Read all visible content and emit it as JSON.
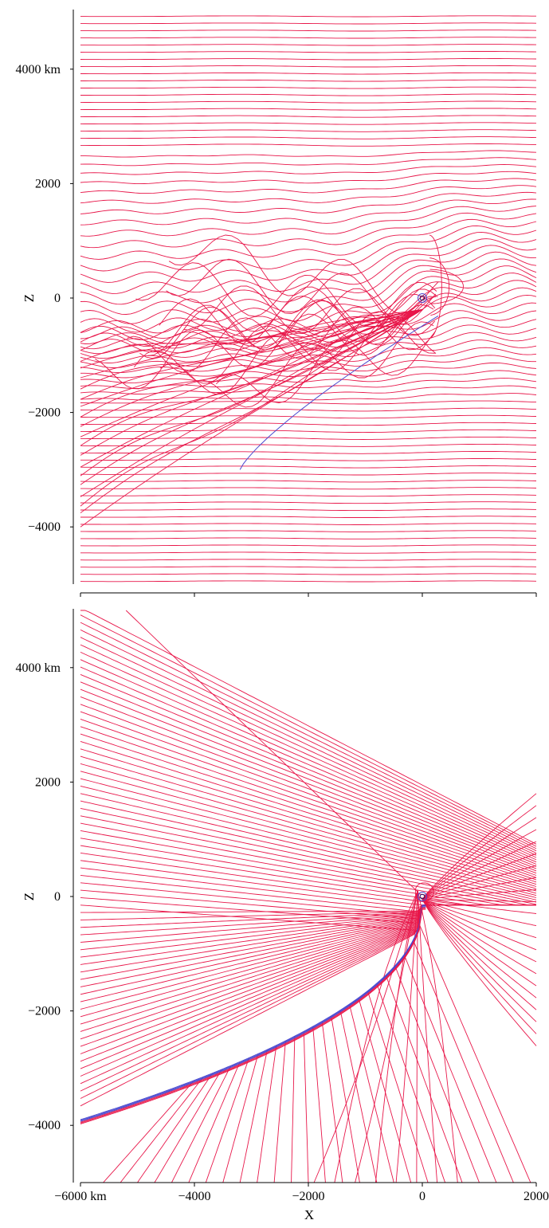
{
  "chart_data": [
    {
      "type": "line",
      "title": "",
      "xlabel": "",
      "ylabel": "Z",
      "xlim": [
        -6000,
        2000
      ],
      "ylim": [
        -5000,
        5000
      ],
      "y_ticks": [
        {
          "value": 4000,
          "label": "4000 km"
        },
        {
          "value": 2000,
          "label": "2000"
        },
        {
          "value": 0,
          "label": "0"
        },
        {
          "value": -2000,
          "label": "−2000"
        },
        {
          "value": -4000,
          "label": "−4000"
        }
      ],
      "x_ticks": [
        -6000,
        -4000,
        -2000,
        0,
        2000
      ],
      "colors": {
        "field": "#e8174a",
        "boundary": "#4a4ad0"
      },
      "grid": false,
      "legend": "none"
    },
    {
      "type": "line",
      "title": "",
      "xlabel": "X",
      "ylabel": "Z",
      "xlim": [
        -6000,
        2000
      ],
      "ylim": [
        -5000,
        5000
      ],
      "y_ticks": [
        {
          "value": 4000,
          "label": "4000 km"
        },
        {
          "value": 2000,
          "label": "2000"
        },
        {
          "value": 0,
          "label": "0"
        },
        {
          "value": -2000,
          "label": "−2000"
        },
        {
          "value": -4000,
          "label": "−4000"
        }
      ],
      "x_ticks": [
        {
          "value": -6000,
          "label": "−6000 km"
        },
        {
          "value": -4000,
          "label": "−4000"
        },
        {
          "value": -2000,
          "label": "−2000"
        },
        {
          "value": 0,
          "label": "0"
        },
        {
          "value": 2000,
          "label": "2000"
        }
      ],
      "colors": {
        "field": "#e8174a",
        "boundary": "#4a4ad0"
      },
      "grid": false,
      "legend": "none"
    }
  ]
}
